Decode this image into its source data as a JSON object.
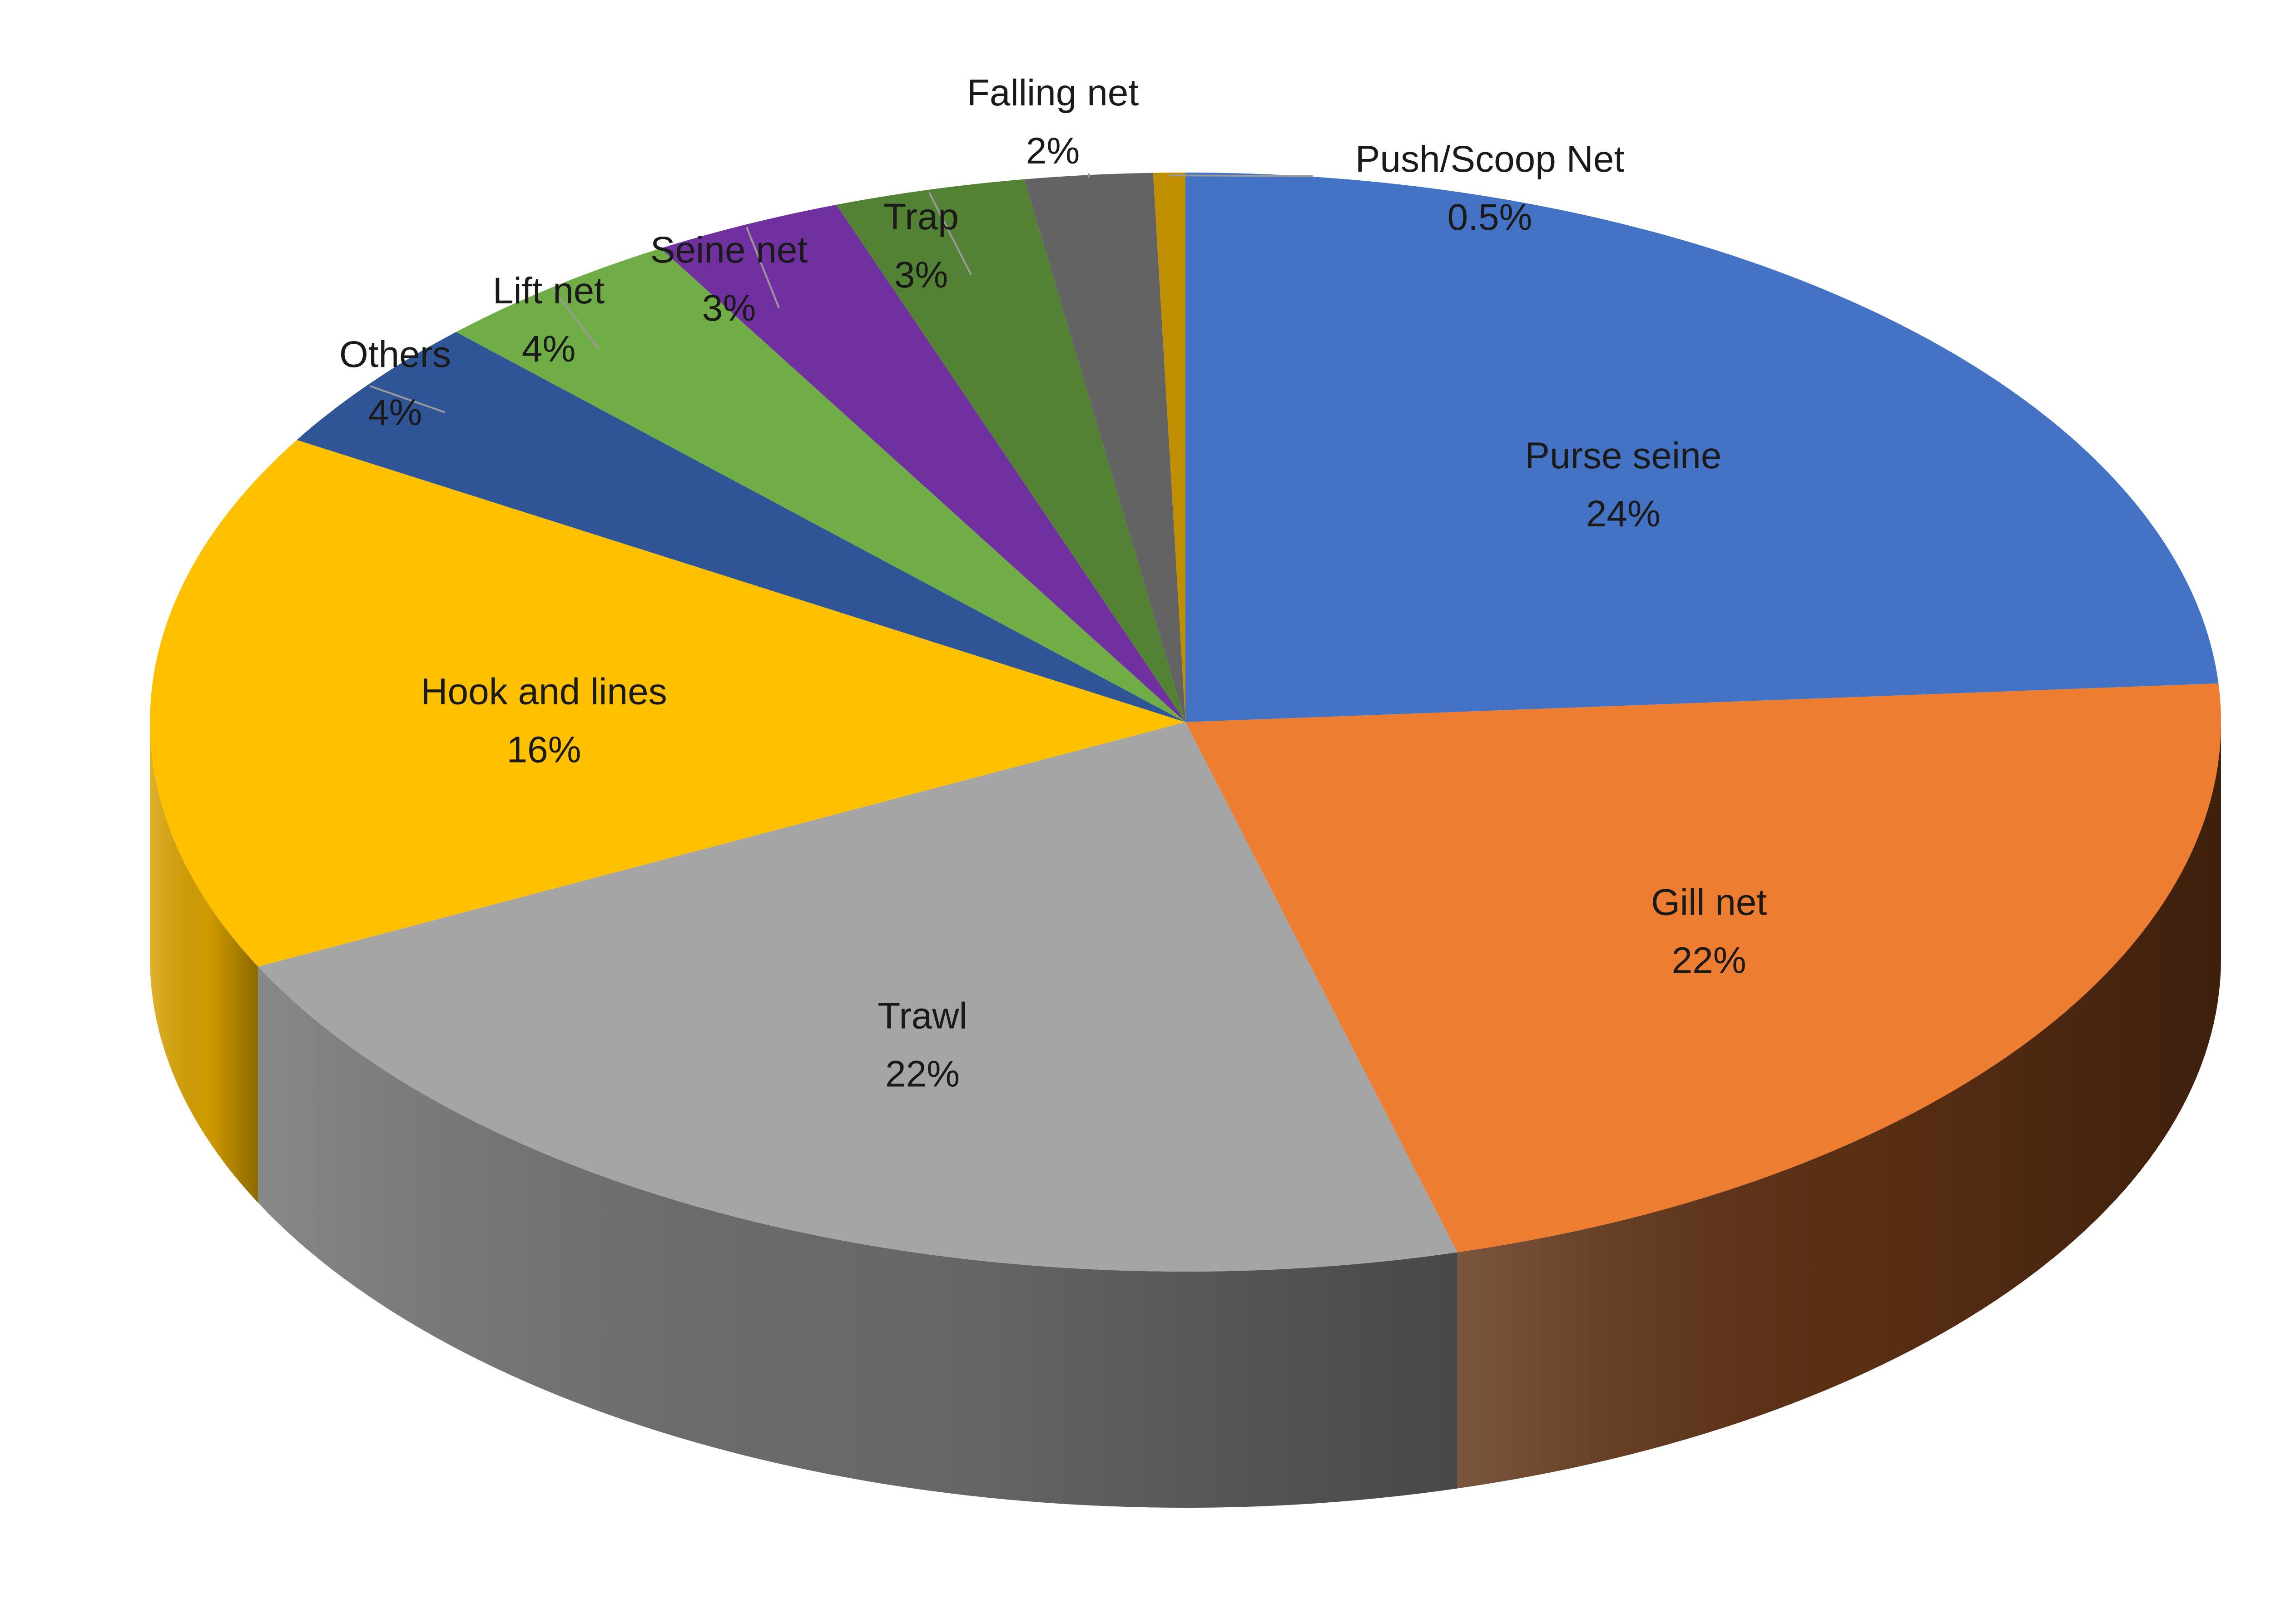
{
  "chart_data": {
    "type": "pie",
    "style": "3d",
    "title": "",
    "start_angle_deg": 90,
    "direction": "clockwise",
    "slices": [
      {
        "label": "Purse seine",
        "value": 24,
        "display": "24%",
        "color": "#4472C4",
        "side_color": "#2C4D8A",
        "label_inside": true
      },
      {
        "label": "Gill net",
        "value": 22,
        "display": "22%",
        "color": "#ED7D31",
        "side_color": "#5E3114",
        "label_inside": true
      },
      {
        "label": "Trawl",
        "value": 22,
        "display": "22%",
        "color": "#A5A5A5",
        "side_color": "#6E6E6E",
        "label_inside": true
      },
      {
        "label": "Hook and lines",
        "value": 16,
        "display": "16%",
        "color": "#FFC000",
        "side_color": "#D9A200",
        "label_inside": true
      },
      {
        "label": "Others",
        "value": 4,
        "display": "4%",
        "color": "#2F5597",
        "side_color": "#1F3A66",
        "label_inside": false
      },
      {
        "label": "Lift net",
        "value": 4,
        "display": "4%",
        "color": "#70AD47",
        "side_color": "#4C7A2F",
        "label_inside": false
      },
      {
        "label": "Seine net",
        "value": 3,
        "display": "3%",
        "color": "#7030A0",
        "side_color": "#4B1F6B",
        "label_inside": false
      },
      {
        "label": "Trap",
        "value": 3,
        "display": "3%",
        "color": "#548235",
        "side_color": "#385823",
        "label_inside": false
      },
      {
        "label": "Falling net",
        "value": 2,
        "display": "2%",
        "color": "#636363",
        "side_color": "#404040",
        "label_inside": false
      },
      {
        "label": "Push/Scoop Net",
        "value": 0.5,
        "display": "0.5%",
        "color": "#BF8F00",
        "side_color": "#8A6700",
        "label_inside": false
      }
    ]
  }
}
